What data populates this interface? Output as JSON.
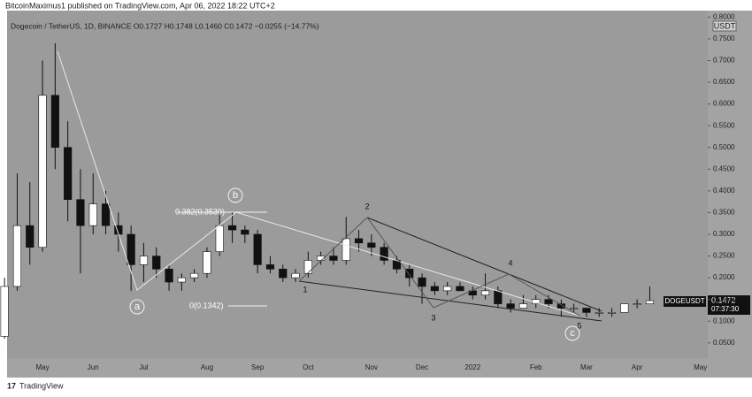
{
  "header": "BitcoinMaximus1 published on TradingView.com, Apr 06, 2022 18:22 UTC+2",
  "footer": "TradingView",
  "chart_data": {
    "type": "candlestick",
    "legend_text": "Dogecoin / TetherUS, 1D, BINANCE  O0.1727  H0.1748  L0.1460  C0.1472  −0.0255 (−14.77%)",
    "currency": "USDT",
    "symbol_label": "DOGEUSDT",
    "last_price_label": "0.1472",
    "countdown": "07:37:30",
    "annotations": {
      "a": "a",
      "b": "b",
      "c": "c",
      "w1": "1",
      "w2": "2",
      "w3": "3",
      "w4": "4",
      "w5": "5",
      "fib_382": "0.382(0.3539)",
      "fib_0": "0(0.1342)"
    },
    "categories": [
      null,
      null,
      null,
      "May",
      null,
      null,
      null,
      "Jun",
      null,
      null,
      null,
      "Jul",
      null,
      null,
      null,
      null,
      "Aug",
      null,
      null,
      null,
      "Sep",
      null,
      null,
      null,
      "Oct",
      null,
      null,
      null,
      null,
      "Nov",
      null,
      null,
      null,
      "Dec",
      null,
      null,
      null,
      "2022",
      null,
      null,
      null,
      null,
      "Feb",
      null,
      null,
      null,
      "Mar",
      null,
      null,
      null,
      "Apr",
      null,
      null,
      null,
      null,
      "May"
    ],
    "open": [
      0.065,
      0.18,
      0.32,
      0.27,
      0.62,
      0.5,
      0.38,
      0.32,
      0.37,
      0.32,
      0.3,
      0.23,
      0.25,
      0.22,
      0.19,
      0.2,
      0.21,
      0.26,
      0.32,
      0.31,
      0.3,
      0.23,
      0.22,
      0.2,
      0.21,
      0.24,
      0.25,
      0.24,
      0.29,
      0.28,
      0.27,
      0.24,
      0.22,
      0.2,
      0.18,
      0.17,
      0.18,
      0.17,
      0.16,
      0.17,
      0.14,
      0.13,
      0.14,
      0.15,
      0.14,
      0.13,
      0.13,
      0.12,
      0.12,
      0.12,
      0.14,
      0.14,
      null,
      null,
      null,
      null
    ],
    "high": [
      0.2,
      0.44,
      0.42,
      0.7,
      0.74,
      0.56,
      0.45,
      0.44,
      0.4,
      0.35,
      0.32,
      0.28,
      0.27,
      0.23,
      0.21,
      0.22,
      0.27,
      0.35,
      0.35,
      0.32,
      0.31,
      0.25,
      0.23,
      0.22,
      0.26,
      0.26,
      0.27,
      0.34,
      0.31,
      0.3,
      0.28,
      0.25,
      0.23,
      0.21,
      0.19,
      0.19,
      0.19,
      0.18,
      0.21,
      0.18,
      0.15,
      0.16,
      0.16,
      0.16,
      0.15,
      0.14,
      0.13,
      0.13,
      0.13,
      0.14,
      0.15,
      0.18,
      null,
      null,
      null,
      null
    ],
    "low": [
      0.06,
      0.17,
      0.23,
      0.26,
      0.45,
      0.33,
      0.21,
      0.3,
      0.3,
      0.26,
      0.17,
      0.19,
      0.2,
      0.17,
      0.17,
      0.19,
      0.2,
      0.25,
      0.28,
      0.28,
      0.21,
      0.21,
      0.19,
      0.19,
      0.2,
      0.23,
      0.23,
      0.23,
      0.26,
      0.25,
      0.23,
      0.21,
      0.18,
      0.14,
      0.16,
      0.16,
      0.17,
      0.15,
      0.15,
      0.13,
      0.12,
      0.13,
      0.13,
      0.13,
      0.11,
      0.12,
      0.11,
      0.11,
      0.11,
      0.12,
      0.13,
      0.14,
      null,
      null,
      null,
      null
    ],
    "close": [
      0.18,
      0.32,
      0.27,
      0.62,
      0.5,
      0.38,
      0.32,
      0.37,
      0.32,
      0.3,
      0.23,
      0.25,
      0.22,
      0.19,
      0.2,
      0.21,
      0.26,
      0.32,
      0.31,
      0.3,
      0.23,
      0.22,
      0.2,
      0.21,
      0.24,
      0.25,
      0.24,
      0.29,
      0.28,
      0.27,
      0.24,
      0.22,
      0.2,
      0.18,
      0.17,
      0.18,
      0.17,
      0.16,
      0.17,
      0.14,
      0.13,
      0.14,
      0.15,
      0.14,
      0.13,
      0.13,
      0.12,
      0.12,
      0.12,
      0.14,
      0.14,
      0.1472,
      null,
      null,
      null,
      null
    ],
    "up_color": "#ffffff",
    "down_color": "#111111",
    "ylim": [
      0.015,
      0.815
    ],
    "yticks": [
      {
        "value": 0.05,
        "label": "0.0500"
      },
      {
        "value": 0.1,
        "label": "0.1000"
      },
      {
        "value": 0.15,
        "label": "0.1500"
      },
      {
        "value": 0.2,
        "label": "0.2000"
      },
      {
        "value": 0.25,
        "label": "0.2500"
      },
      {
        "value": 0.3,
        "label": "0.3000"
      },
      {
        "value": 0.35,
        "label": "0.3500"
      },
      {
        "value": 0.4,
        "label": "0.4000"
      },
      {
        "value": 0.45,
        "label": "0.4500"
      },
      {
        "value": 0.5,
        "label": "0.5000"
      },
      {
        "value": 0.55,
        "label": "0.5500"
      },
      {
        "value": 0.6,
        "label": "0.6000"
      },
      {
        "value": 0.65,
        "label": "0.6500"
      },
      {
        "value": 0.7,
        "label": "0.7000"
      },
      {
        "value": 0.75,
        "label": "0.7500"
      },
      {
        "value": 0.8,
        "label": "0.8000"
      }
    ],
    "grid": false
  }
}
